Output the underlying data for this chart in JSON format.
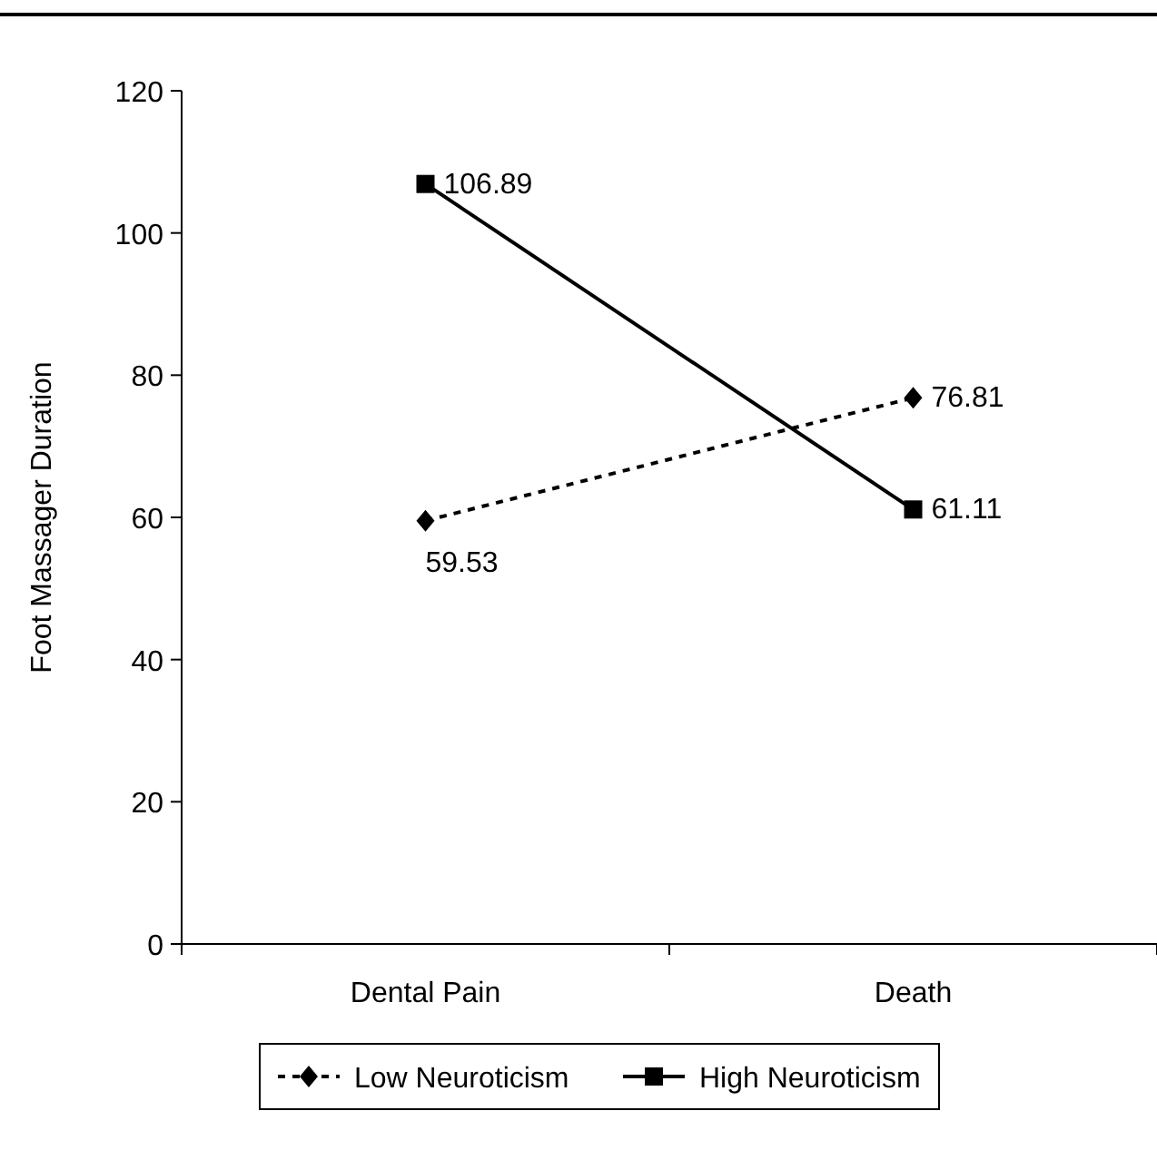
{
  "chart_data": {
    "type": "line",
    "ylabel": "Foot Massager Duration",
    "categories": [
      "Dental Pain",
      "Death"
    ],
    "ylim": [
      0,
      120
    ],
    "yticks": [
      0,
      20,
      40,
      60,
      80,
      100,
      120
    ],
    "data_labels": true,
    "legend": "bottom",
    "grid": false,
    "series": [
      {
        "name": "Low Neuroticism",
        "color": "#000000",
        "values": [
          59.53,
          76.81
        ],
        "marker": "diamond",
        "line_style": "dotted"
      },
      {
        "name": "High Neuroticism",
        "color": "#000000",
        "values": [
          106.89,
          61.11
        ],
        "marker": "square",
        "line_style": "solid"
      }
    ]
  }
}
